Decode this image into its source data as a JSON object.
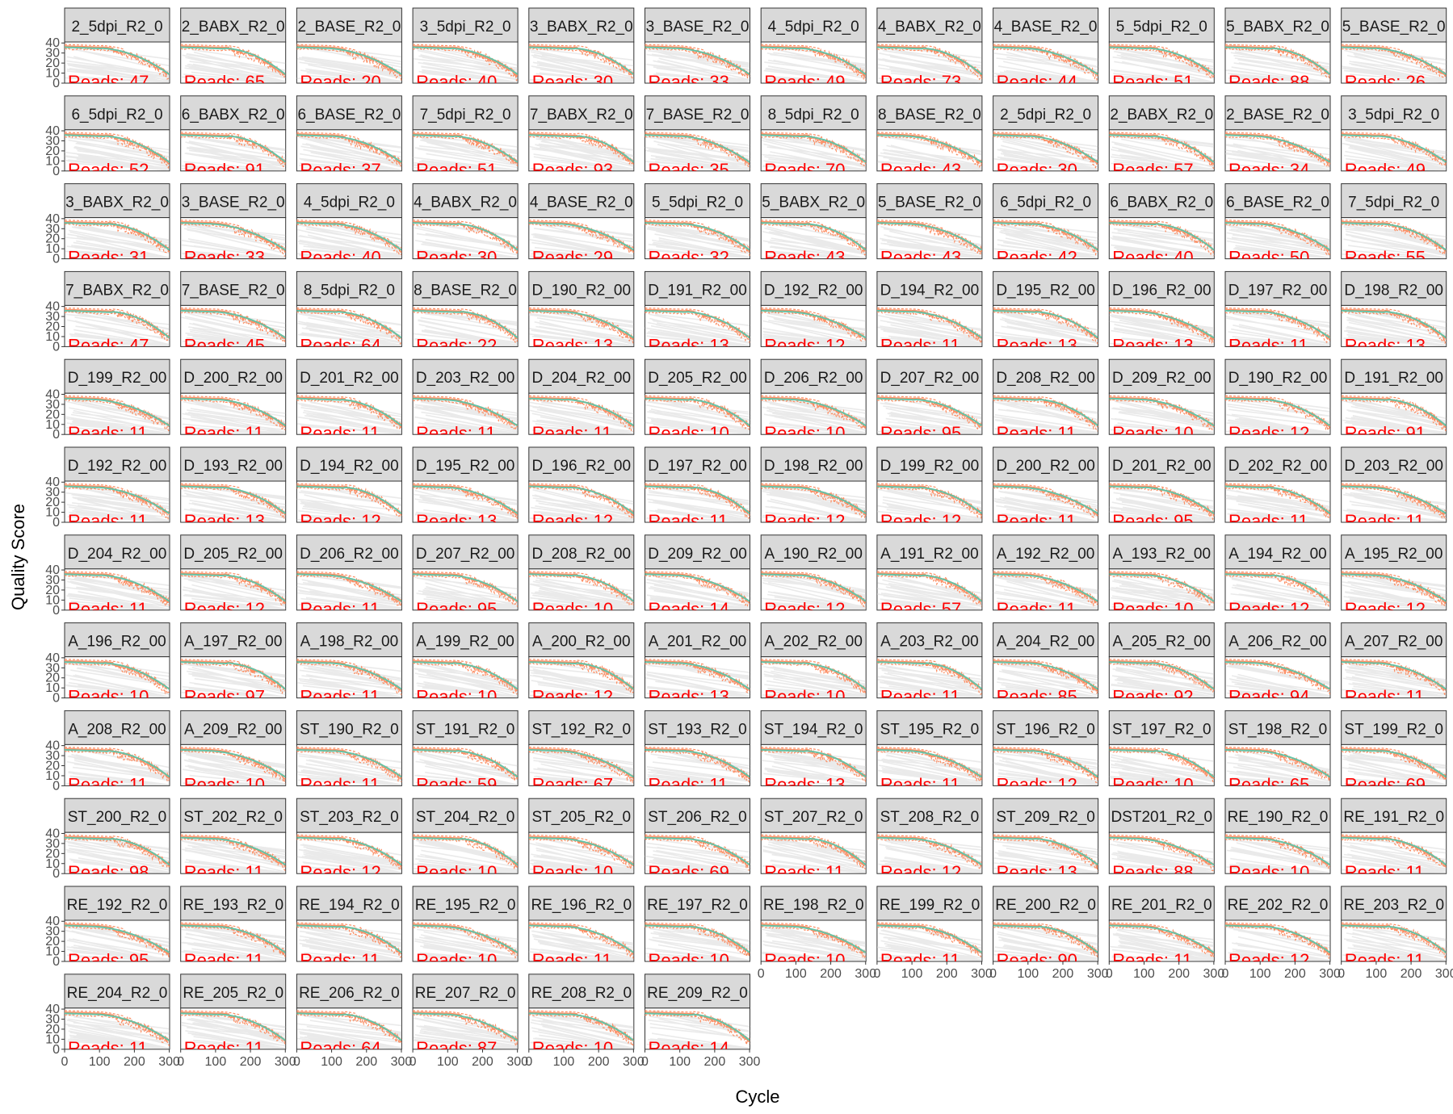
{
  "chart_data": {
    "type": "line",
    "xlabel": "Cycle",
    "ylabel": "Quality Score",
    "xlim": [
      0,
      301
    ],
    "ylim": [
      0,
      41
    ],
    "x_ticks": [
      0,
      100,
      200,
      300
    ],
    "x_tick_labels": [
      "0",
      "100",
      "200",
      "300"
    ],
    "y_ticks": [
      0,
      10,
      20,
      30,
      40
    ],
    "y_tick_labels": [
      "0",
      "10",
      "20",
      "30",
      "40"
    ],
    "layout": {
      "ncol": 12,
      "nrow": 12
    },
    "facet_strip_label_visible": true,
    "reads_label_prefix": "Reads: ",
    "series_styles": {
      "mean": "#66c2a5",
      "median": "#fc8d62",
      "quartiles": "#fc8d62",
      "heatmap": "#d9d9d9"
    },
    "panels": [
      {
        "strip": "2_5dpi_R2_0",
        "reads": "47"
      },
      {
        "strip": "2_BABX_R2_0",
        "reads": "65"
      },
      {
        "strip": "2_BASE_R2_0",
        "reads": "20"
      },
      {
        "strip": "3_5dpi_R2_0",
        "reads": "40"
      },
      {
        "strip": "3_BABX_R2_0",
        "reads": "30"
      },
      {
        "strip": "3_BASE_R2_0",
        "reads": "33"
      },
      {
        "strip": "4_5dpi_R2_0",
        "reads": "49"
      },
      {
        "strip": "4_BABX_R2_0",
        "reads": "73"
      },
      {
        "strip": "4_BASE_R2_0",
        "reads": "44"
      },
      {
        "strip": "5_5dpi_R2_0",
        "reads": "51"
      },
      {
        "strip": "5_BABX_R2_0",
        "reads": "88"
      },
      {
        "strip": "5_BASE_R2_0",
        "reads": "26"
      },
      {
        "strip": "6_5dpi_R2_0",
        "reads": "52"
      },
      {
        "strip": "6_BABX_R2_0",
        "reads": "91"
      },
      {
        "strip": "6_BASE_R2_0",
        "reads": "37"
      },
      {
        "strip": "7_5dpi_R2_0",
        "reads": "51"
      },
      {
        "strip": "7_BABX_R2_0",
        "reads": "93"
      },
      {
        "strip": "7_BASE_R2_0",
        "reads": "35"
      },
      {
        "strip": "8_5dpi_R2_0",
        "reads": "70"
      },
      {
        "strip": "8_BASE_R2_0",
        "reads": "43"
      },
      {
        "strip": "2_5dpi_R2_0",
        "reads": "30"
      },
      {
        "strip": "2_BABX_R2_0",
        "reads": "57"
      },
      {
        "strip": "2_BASE_R2_0",
        "reads": "34"
      },
      {
        "strip": "3_5dpi_R2_0",
        "reads": "49"
      },
      {
        "strip": "3_BABX_R2_0",
        "reads": "31"
      },
      {
        "strip": "3_BASE_R2_0",
        "reads": "33"
      },
      {
        "strip": "4_5dpi_R2_0",
        "reads": "40"
      },
      {
        "strip": "4_BABX_R2_0",
        "reads": "30"
      },
      {
        "strip": "4_BASE_R2_0",
        "reads": "29"
      },
      {
        "strip": "5_5dpi_R2_0",
        "reads": "32"
      },
      {
        "strip": "5_BABX_R2_0",
        "reads": "43"
      },
      {
        "strip": "5_BASE_R2_0",
        "reads": "43"
      },
      {
        "strip": "6_5dpi_R2_0",
        "reads": "42"
      },
      {
        "strip": "6_BABX_R2_0",
        "reads": "40"
      },
      {
        "strip": "6_BASE_R2_0",
        "reads": "50"
      },
      {
        "strip": "7_5dpi_R2_0",
        "reads": "55"
      },
      {
        "strip": "7_BABX_R2_0",
        "reads": "47"
      },
      {
        "strip": "7_BASE_R2_0",
        "reads": "45"
      },
      {
        "strip": "8_5dpi_R2_0",
        "reads": "64"
      },
      {
        "strip": "8_BASE_R2_0",
        "reads": "22"
      },
      {
        "strip": "D_190_R2_00",
        "reads": "13"
      },
      {
        "strip": "D_191_R2_00",
        "reads": "13"
      },
      {
        "strip": "D_192_R2_00",
        "reads": "12"
      },
      {
        "strip": "D_194_R2_00",
        "reads": "11"
      },
      {
        "strip": "D_195_R2_00",
        "reads": "13"
      },
      {
        "strip": "D_196_R2_00",
        "reads": "13"
      },
      {
        "strip": "D_197_R2_00",
        "reads": "11"
      },
      {
        "strip": "D_198_R2_00",
        "reads": "13"
      },
      {
        "strip": "D_199_R2_00",
        "reads": "11"
      },
      {
        "strip": "D_200_R2_00",
        "reads": "11"
      },
      {
        "strip": "D_201_R2_00",
        "reads": "11"
      },
      {
        "strip": "D_203_R2_00",
        "reads": "11"
      },
      {
        "strip": "D_204_R2_00",
        "reads": "11"
      },
      {
        "strip": "D_205_R2_00",
        "reads": "10"
      },
      {
        "strip": "D_206_R2_00",
        "reads": "10"
      },
      {
        "strip": "D_207_R2_00",
        "reads": "95"
      },
      {
        "strip": "D_208_R2_00",
        "reads": "11"
      },
      {
        "strip": "D_209_R2_00",
        "reads": "10"
      },
      {
        "strip": "D_190_R2_00",
        "reads": "12"
      },
      {
        "strip": "D_191_R2_00",
        "reads": "91"
      },
      {
        "strip": "D_192_R2_00",
        "reads": "11"
      },
      {
        "strip": "D_193_R2_00",
        "reads": "13"
      },
      {
        "strip": "D_194_R2_00",
        "reads": "12"
      },
      {
        "strip": "D_195_R2_00",
        "reads": "13"
      },
      {
        "strip": "D_196_R2_00",
        "reads": "12"
      },
      {
        "strip": "D_197_R2_00",
        "reads": "11"
      },
      {
        "strip": "D_198_R2_00",
        "reads": "12"
      },
      {
        "strip": "D_199_R2_00",
        "reads": "12"
      },
      {
        "strip": "D_200_R2_00",
        "reads": "11"
      },
      {
        "strip": "D_201_R2_00",
        "reads": "95"
      },
      {
        "strip": "D_202_R2_00",
        "reads": "11"
      },
      {
        "strip": "D_203_R2_00",
        "reads": "11"
      },
      {
        "strip": "D_204_R2_00",
        "reads": "11"
      },
      {
        "strip": "D_205_R2_00",
        "reads": "12"
      },
      {
        "strip": "D_206_R2_00",
        "reads": "11"
      },
      {
        "strip": "D_207_R2_00",
        "reads": "95"
      },
      {
        "strip": "D_208_R2_00",
        "reads": "10"
      },
      {
        "strip": "D_209_R2_00",
        "reads": "14"
      },
      {
        "strip": "A_190_R2_00",
        "reads": "12"
      },
      {
        "strip": "A_191_R2_00",
        "reads": "57"
      },
      {
        "strip": "A_192_R2_00",
        "reads": "11"
      },
      {
        "strip": "A_193_R2_00",
        "reads": "10"
      },
      {
        "strip": "A_194_R2_00",
        "reads": "12"
      },
      {
        "strip": "A_195_R2_00",
        "reads": "12"
      },
      {
        "strip": "A_196_R2_00",
        "reads": "10"
      },
      {
        "strip": "A_197_R2_00",
        "reads": "97"
      },
      {
        "strip": "A_198_R2_00",
        "reads": "11"
      },
      {
        "strip": "A_199_R2_00",
        "reads": "10"
      },
      {
        "strip": "A_200_R2_00",
        "reads": "12"
      },
      {
        "strip": "A_201_R2_00",
        "reads": "13"
      },
      {
        "strip": "A_202_R2_00",
        "reads": "10"
      },
      {
        "strip": "A_203_R2_00",
        "reads": "11"
      },
      {
        "strip": "A_204_R2_00",
        "reads": "85"
      },
      {
        "strip": "A_205_R2_00",
        "reads": "92"
      },
      {
        "strip": "A_206_R2_00",
        "reads": "94"
      },
      {
        "strip": "A_207_R2_00",
        "reads": "11"
      },
      {
        "strip": "A_208_R2_00",
        "reads": "11"
      },
      {
        "strip": "A_209_R2_00",
        "reads": "10"
      },
      {
        "strip": "ST_190_R2_0",
        "reads": "11"
      },
      {
        "strip": "ST_191_R2_0",
        "reads": "59"
      },
      {
        "strip": "ST_192_R2_0",
        "reads": "67"
      },
      {
        "strip": "ST_193_R2_0",
        "reads": "11"
      },
      {
        "strip": "ST_194_R2_0",
        "reads": "13"
      },
      {
        "strip": "ST_195_R2_0",
        "reads": "11"
      },
      {
        "strip": "ST_196_R2_0",
        "reads": "12"
      },
      {
        "strip": "ST_197_R2_0",
        "reads": "10"
      },
      {
        "strip": "ST_198_R2_0",
        "reads": "65"
      },
      {
        "strip": "ST_199_R2_0",
        "reads": "69"
      },
      {
        "strip": "ST_200_R2_0",
        "reads": "98"
      },
      {
        "strip": "ST_202_R2_0",
        "reads": "11"
      },
      {
        "strip": "ST_203_R2_0",
        "reads": "12"
      },
      {
        "strip": "ST_204_R2_0",
        "reads": "10"
      },
      {
        "strip": "ST_205_R2_0",
        "reads": "10"
      },
      {
        "strip": "ST_206_R2_0",
        "reads": "69"
      },
      {
        "strip": "ST_207_R2_0",
        "reads": "11"
      },
      {
        "strip": "ST_208_R2_0",
        "reads": "12"
      },
      {
        "strip": "ST_209_R2_0",
        "reads": "13"
      },
      {
        "strip": "DST201_R2_0",
        "reads": "88"
      },
      {
        "strip": "RE_190_R2_0",
        "reads": "10"
      },
      {
        "strip": "RE_191_R2_0",
        "reads": "11"
      },
      {
        "strip": "RE_192_R2_0",
        "reads": "95"
      },
      {
        "strip": "RE_193_R2_0",
        "reads": "11"
      },
      {
        "strip": "RE_194_R2_0",
        "reads": "11"
      },
      {
        "strip": "RE_195_R2_0",
        "reads": "10"
      },
      {
        "strip": "RE_196_R2_0",
        "reads": "11"
      },
      {
        "strip": "RE_197_R2_0",
        "reads": "10"
      },
      {
        "strip": "RE_198_R2_0",
        "reads": "10"
      },
      {
        "strip": "RE_199_R2_0",
        "reads": "11"
      },
      {
        "strip": "RE_200_R2_0",
        "reads": "90"
      },
      {
        "strip": "RE_201_R2_0",
        "reads": "11"
      },
      {
        "strip": "RE_202_R2_0",
        "reads": "12"
      },
      {
        "strip": "RE_203_R2_0",
        "reads": "11"
      },
      {
        "strip": "RE_204_R2_0",
        "reads": "11"
      },
      {
        "strip": "RE_205_R2_0",
        "reads": "11"
      },
      {
        "strip": "RE_206_R2_0",
        "reads": "64"
      },
      {
        "strip": "RE_207_R2_0",
        "reads": "87"
      },
      {
        "strip": "RE_208_R2_0",
        "reads": "10"
      },
      {
        "strip": "RE_209_R2_0",
        "reads": "14"
      }
    ]
  }
}
